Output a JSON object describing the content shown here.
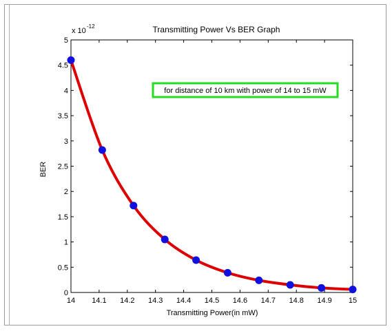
{
  "chart_data": {
    "type": "line",
    "title": "Transmitting Power Vs BER Graph",
    "xlabel": "Transmitting Power(in mW)",
    "ylabel": "BER",
    "exponent_label": "x 10",
    "exponent_power": "-12",
    "xlim": [
      14,
      15
    ],
    "ylim": [
      0,
      5
    ],
    "xticks": [
      "14",
      "14.1",
      "14.2",
      "14.3",
      "14.4",
      "14.5",
      "14.6",
      "14.7",
      "14.8",
      "14.9",
      "15"
    ],
    "yticks": [
      "0",
      "0.5",
      "1",
      "1.5",
      "2",
      "2.5",
      "3",
      "3.5",
      "4",
      "4.5",
      "5"
    ],
    "annotation": "for distance of 10 km with power of 14 to 15 mW",
    "grid": false,
    "series": [
      {
        "x": [
          14.0,
          14.111,
          14.222,
          14.333,
          14.444,
          14.556,
          14.667,
          14.778,
          14.889,
          15.0
        ],
        "y": [
          4.6,
          2.82,
          1.72,
          1.05,
          0.64,
          0.39,
          0.24,
          0.15,
          0.09,
          0.06
        ],
        "line_color": "#dd0000",
        "marker_color": "#1010e0"
      }
    ],
    "annotation_border_color": "#22dd22"
  }
}
